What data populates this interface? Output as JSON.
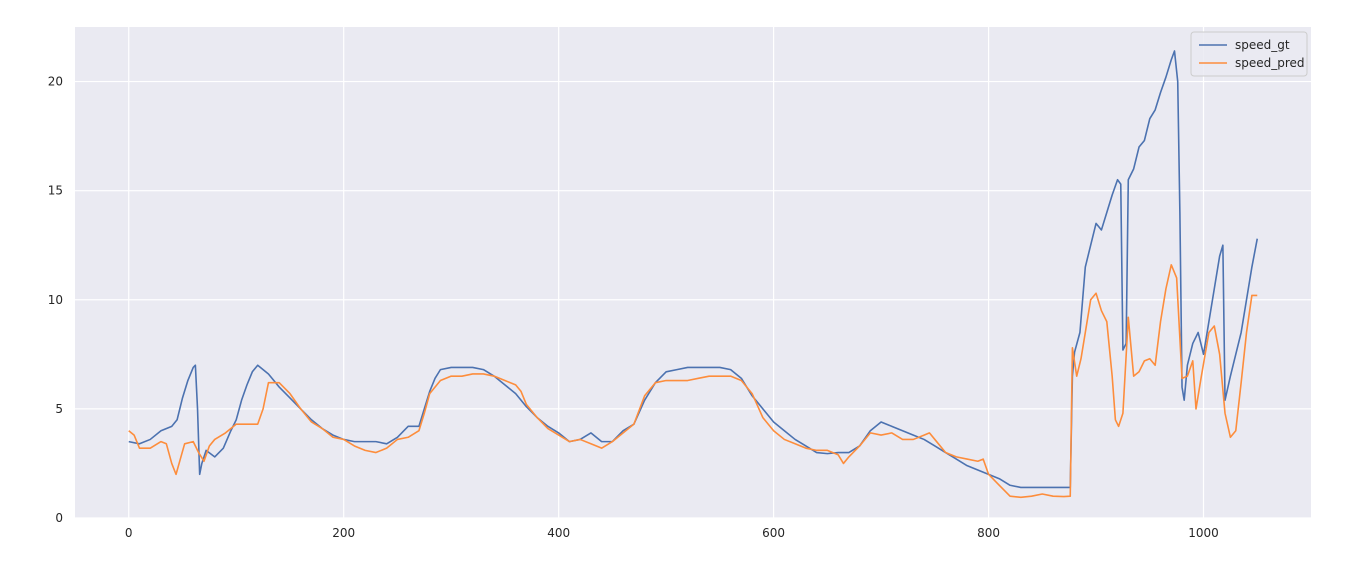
{
  "chart_data": {
    "type": "line",
    "title": "",
    "xlabel": "",
    "ylabel": "",
    "xlim": [
      -50,
      1100
    ],
    "ylim": [
      0,
      22.5
    ],
    "xticks": [
      0,
      200,
      400,
      600,
      800,
      1000
    ],
    "yticks": [
      0,
      5,
      10,
      15,
      20
    ],
    "grid": true,
    "legend_position": "top-right",
    "series": [
      {
        "name": "speed_gt",
        "color": "#4c72b0",
        "points": [
          [
            0,
            3.5
          ],
          [
            10,
            3.4
          ],
          [
            20,
            3.6
          ],
          [
            30,
            4.0
          ],
          [
            40,
            4.2
          ],
          [
            45,
            4.5
          ],
          [
            50,
            5.5
          ],
          [
            55,
            6.3
          ],
          [
            60,
            6.9
          ],
          [
            62,
            7.0
          ],
          [
            64,
            5.0
          ],
          [
            66,
            2.0
          ],
          [
            68,
            2.5
          ],
          [
            72,
            3.1
          ],
          [
            80,
            2.8
          ],
          [
            88,
            3.2
          ],
          [
            95,
            4.0
          ],
          [
            100,
            4.5
          ],
          [
            105,
            5.4
          ],
          [
            110,
            6.1
          ],
          [
            115,
            6.7
          ],
          [
            120,
            7.0
          ],
          [
            125,
            6.8
          ],
          [
            130,
            6.6
          ],
          [
            135,
            6.3
          ],
          [
            140,
            6.0
          ],
          [
            150,
            5.5
          ],
          [
            160,
            5.0
          ],
          [
            170,
            4.5
          ],
          [
            180,
            4.1
          ],
          [
            190,
            3.8
          ],
          [
            200,
            3.6
          ],
          [
            210,
            3.5
          ],
          [
            220,
            3.5
          ],
          [
            230,
            3.5
          ],
          [
            240,
            3.4
          ],
          [
            250,
            3.7
          ],
          [
            260,
            4.2
          ],
          [
            270,
            4.2
          ],
          [
            275,
            5.0
          ],
          [
            280,
            5.8
          ],
          [
            285,
            6.4
          ],
          [
            290,
            6.8
          ],
          [
            300,
            6.9
          ],
          [
            310,
            6.9
          ],
          [
            320,
            6.9
          ],
          [
            330,
            6.8
          ],
          [
            340,
            6.5
          ],
          [
            350,
            6.1
          ],
          [
            360,
            5.7
          ],
          [
            370,
            5.1
          ],
          [
            380,
            4.6
          ],
          [
            390,
            4.2
          ],
          [
            400,
            3.9
          ],
          [
            410,
            3.5
          ],
          [
            420,
            3.6
          ],
          [
            430,
            3.9
          ],
          [
            440,
            3.5
          ],
          [
            450,
            3.5
          ],
          [
            460,
            4.0
          ],
          [
            470,
            4.3
          ],
          [
            480,
            5.4
          ],
          [
            490,
            6.2
          ],
          [
            500,
            6.7
          ],
          [
            510,
            6.8
          ],
          [
            520,
            6.9
          ],
          [
            530,
            6.9
          ],
          [
            540,
            6.9
          ],
          [
            550,
            6.9
          ],
          [
            560,
            6.8
          ],
          [
            570,
            6.4
          ],
          [
            580,
            5.6
          ],
          [
            590,
            5.0
          ],
          [
            600,
            4.4
          ],
          [
            610,
            4.0
          ],
          [
            620,
            3.6
          ],
          [
            630,
            3.3
          ],
          [
            640,
            3.0
          ],
          [
            650,
            2.95
          ],
          [
            660,
            3.0
          ],
          [
            670,
            3.0
          ],
          [
            680,
            3.3
          ],
          [
            690,
            4.0
          ],
          [
            700,
            4.4
          ],
          [
            710,
            4.2
          ],
          [
            720,
            4.0
          ],
          [
            730,
            3.8
          ],
          [
            740,
            3.6
          ],
          [
            750,
            3.3
          ],
          [
            760,
            3.0
          ],
          [
            770,
            2.7
          ],
          [
            780,
            2.4
          ],
          [
            790,
            2.2
          ],
          [
            800,
            2.0
          ],
          [
            810,
            1.8
          ],
          [
            820,
            1.5
          ],
          [
            830,
            1.4
          ],
          [
            840,
            1.4
          ],
          [
            850,
            1.4
          ],
          [
            860,
            1.4
          ],
          [
            870,
            1.4
          ],
          [
            876,
            1.4
          ],
          [
            878,
            6.5
          ],
          [
            880,
            7.6
          ],
          [
            885,
            8.5
          ],
          [
            890,
            11.5
          ],
          [
            895,
            12.5
          ],
          [
            900,
            13.5
          ],
          [
            905,
            13.2
          ],
          [
            910,
            14.0
          ],
          [
            915,
            14.8
          ],
          [
            920,
            15.5
          ],
          [
            923,
            15.3
          ],
          [
            925,
            7.7
          ],
          [
            928,
            8.0
          ],
          [
            930,
            15.5
          ],
          [
            935,
            16.0
          ],
          [
            940,
            17.0
          ],
          [
            945,
            17.3
          ],
          [
            950,
            18.3
          ],
          [
            955,
            18.7
          ],
          [
            960,
            19.5
          ],
          [
            965,
            20.2
          ],
          [
            970,
            21.0
          ],
          [
            973,
            21.4
          ],
          [
            976,
            20.0
          ],
          [
            978,
            14.0
          ],
          [
            980,
            6.0
          ],
          [
            982,
            5.4
          ],
          [
            985,
            7.0
          ],
          [
            990,
            8.0
          ],
          [
            995,
            8.5
          ],
          [
            1000,
            7.5
          ],
          [
            1005,
            9.0
          ],
          [
            1010,
            10.5
          ],
          [
            1015,
            12.0
          ],
          [
            1018,
            12.5
          ],
          [
            1020,
            5.4
          ],
          [
            1025,
            6.5
          ],
          [
            1030,
            7.5
          ],
          [
            1035,
            8.5
          ],
          [
            1040,
            10.0
          ],
          [
            1045,
            11.5
          ],
          [
            1050,
            12.8
          ]
        ]
      },
      {
        "name": "speed_pred",
        "color": "#fd8d3c",
        "points": [
          [
            0,
            4.0
          ],
          [
            5,
            3.8
          ],
          [
            10,
            3.2
          ],
          [
            20,
            3.2
          ],
          [
            30,
            3.5
          ],
          [
            35,
            3.4
          ],
          [
            40,
            2.5
          ],
          [
            44,
            2.0
          ],
          [
            48,
            2.7
          ],
          [
            52,
            3.4
          ],
          [
            60,
            3.5
          ],
          [
            65,
            3.0
          ],
          [
            70,
            2.6
          ],
          [
            75,
            3.3
          ],
          [
            80,
            3.6
          ],
          [
            90,
            3.9
          ],
          [
            100,
            4.3
          ],
          [
            110,
            4.3
          ],
          [
            120,
            4.3
          ],
          [
            125,
            5.0
          ],
          [
            130,
            6.2
          ],
          [
            140,
            6.2
          ],
          [
            150,
            5.7
          ],
          [
            160,
            5.0
          ],
          [
            170,
            4.4
          ],
          [
            180,
            4.1
          ],
          [
            190,
            3.7
          ],
          [
            200,
            3.6
          ],
          [
            210,
            3.3
          ],
          [
            220,
            3.1
          ],
          [
            230,
            3.0
          ],
          [
            240,
            3.2
          ],
          [
            250,
            3.6
          ],
          [
            260,
            3.7
          ],
          [
            270,
            4.0
          ],
          [
            275,
            4.8
          ],
          [
            280,
            5.7
          ],
          [
            290,
            6.3
          ],
          [
            300,
            6.5
          ],
          [
            310,
            6.5
          ],
          [
            320,
            6.6
          ],
          [
            330,
            6.6
          ],
          [
            340,
            6.5
          ],
          [
            350,
            6.3
          ],
          [
            360,
            6.1
          ],
          [
            365,
            5.8
          ],
          [
            370,
            5.2
          ],
          [
            380,
            4.6
          ],
          [
            390,
            4.1
          ],
          [
            400,
            3.8
          ],
          [
            410,
            3.5
          ],
          [
            420,
            3.6
          ],
          [
            430,
            3.4
          ],
          [
            440,
            3.2
          ],
          [
            450,
            3.5
          ],
          [
            460,
            3.9
          ],
          [
            470,
            4.3
          ],
          [
            480,
            5.6
          ],
          [
            490,
            6.2
          ],
          [
            500,
            6.3
          ],
          [
            510,
            6.3
          ],
          [
            520,
            6.3
          ],
          [
            530,
            6.4
          ],
          [
            540,
            6.5
          ],
          [
            550,
            6.5
          ],
          [
            560,
            6.5
          ],
          [
            570,
            6.3
          ],
          [
            580,
            5.7
          ],
          [
            590,
            4.6
          ],
          [
            600,
            4.0
          ],
          [
            610,
            3.6
          ],
          [
            620,
            3.4
          ],
          [
            630,
            3.2
          ],
          [
            640,
            3.1
          ],
          [
            650,
            3.1
          ],
          [
            660,
            2.9
          ],
          [
            665,
            2.5
          ],
          [
            670,
            2.8
          ],
          [
            680,
            3.3
          ],
          [
            690,
            3.9
          ],
          [
            700,
            3.8
          ],
          [
            710,
            3.9
          ],
          [
            720,
            3.6
          ],
          [
            730,
            3.6
          ],
          [
            740,
            3.8
          ],
          [
            745,
            3.9
          ],
          [
            750,
            3.6
          ],
          [
            760,
            3.0
          ],
          [
            770,
            2.8
          ],
          [
            780,
            2.7
          ],
          [
            790,
            2.6
          ],
          [
            795,
            2.7
          ],
          [
            800,
            2.0
          ],
          [
            810,
            1.5
          ],
          [
            820,
            1.0
          ],
          [
            830,
            0.95
          ],
          [
            840,
            1.0
          ],
          [
            850,
            1.1
          ],
          [
            860,
            1.0
          ],
          [
            870,
            0.98
          ],
          [
            876,
            1.0
          ],
          [
            878,
            7.8
          ],
          [
            882,
            6.5
          ],
          [
            886,
            7.3
          ],
          [
            890,
            8.5
          ],
          [
            895,
            10.0
          ],
          [
            900,
            10.3
          ],
          [
            905,
            9.5
          ],
          [
            910,
            9.0
          ],
          [
            915,
            6.5
          ],
          [
            918,
            4.5
          ],
          [
            921,
            4.2
          ],
          [
            925,
            4.8
          ],
          [
            930,
            9.2
          ],
          [
            935,
            6.5
          ],
          [
            940,
            6.7
          ],
          [
            945,
            7.2
          ],
          [
            950,
            7.3
          ],
          [
            955,
            7.0
          ],
          [
            960,
            9.0
          ],
          [
            965,
            10.5
          ],
          [
            970,
            11.6
          ],
          [
            975,
            11.0
          ],
          [
            980,
            6.4
          ],
          [
            985,
            6.5
          ],
          [
            990,
            7.2
          ],
          [
            993,
            5.0
          ],
          [
            998,
            6.5
          ],
          [
            1005,
            8.5
          ],
          [
            1010,
            8.8
          ],
          [
            1015,
            7.5
          ],
          [
            1020,
            4.8
          ],
          [
            1025,
            3.7
          ],
          [
            1030,
            4.0
          ],
          [
            1035,
            6.2
          ],
          [
            1040,
            8.5
          ],
          [
            1045,
            10.2
          ],
          [
            1050,
            10.2
          ]
        ]
      }
    ]
  }
}
